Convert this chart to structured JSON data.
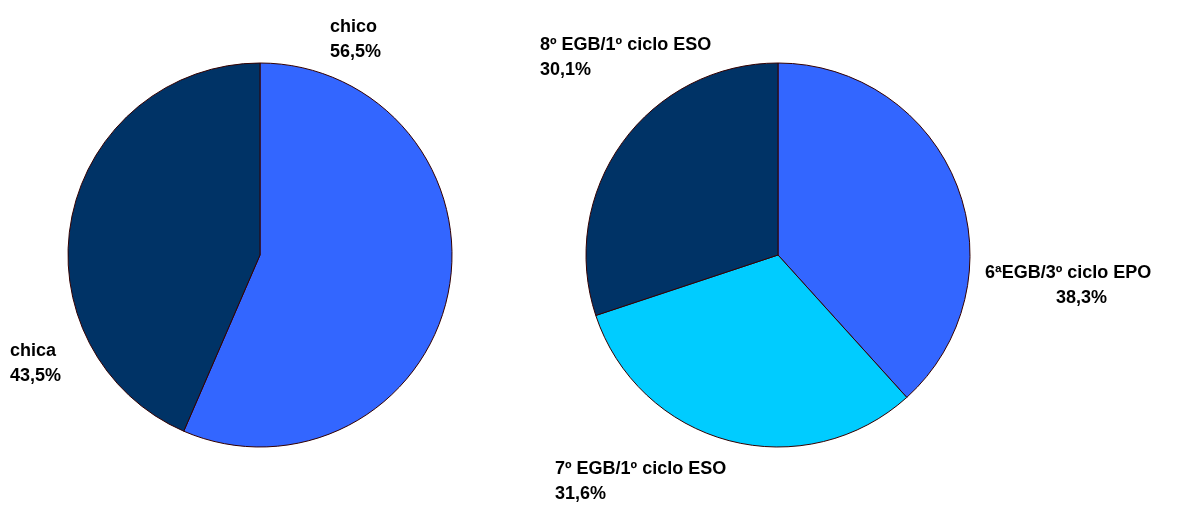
{
  "chart_data": [
    {
      "type": "pie",
      "categories": [
        "chico",
        "chica"
      ],
      "values": [
        56.5,
        43.5
      ],
      "value_labels": [
        "56,5%",
        "43,5%"
      ],
      "colors": [
        "#3366ff",
        "#003366"
      ]
    },
    {
      "type": "pie",
      "categories": [
        "6ªEGB/3º ciclo EPO",
        "7º EGB/1º ciclo ESO",
        "8º EGB/1º ciclo ESO"
      ],
      "values": [
        38.3,
        31.6,
        30.1
      ],
      "value_labels": [
        "38,3%",
        "31,6%",
        "30,1%"
      ],
      "colors": [
        "#3366ff",
        "#00ccff",
        "#003366"
      ]
    }
  ]
}
